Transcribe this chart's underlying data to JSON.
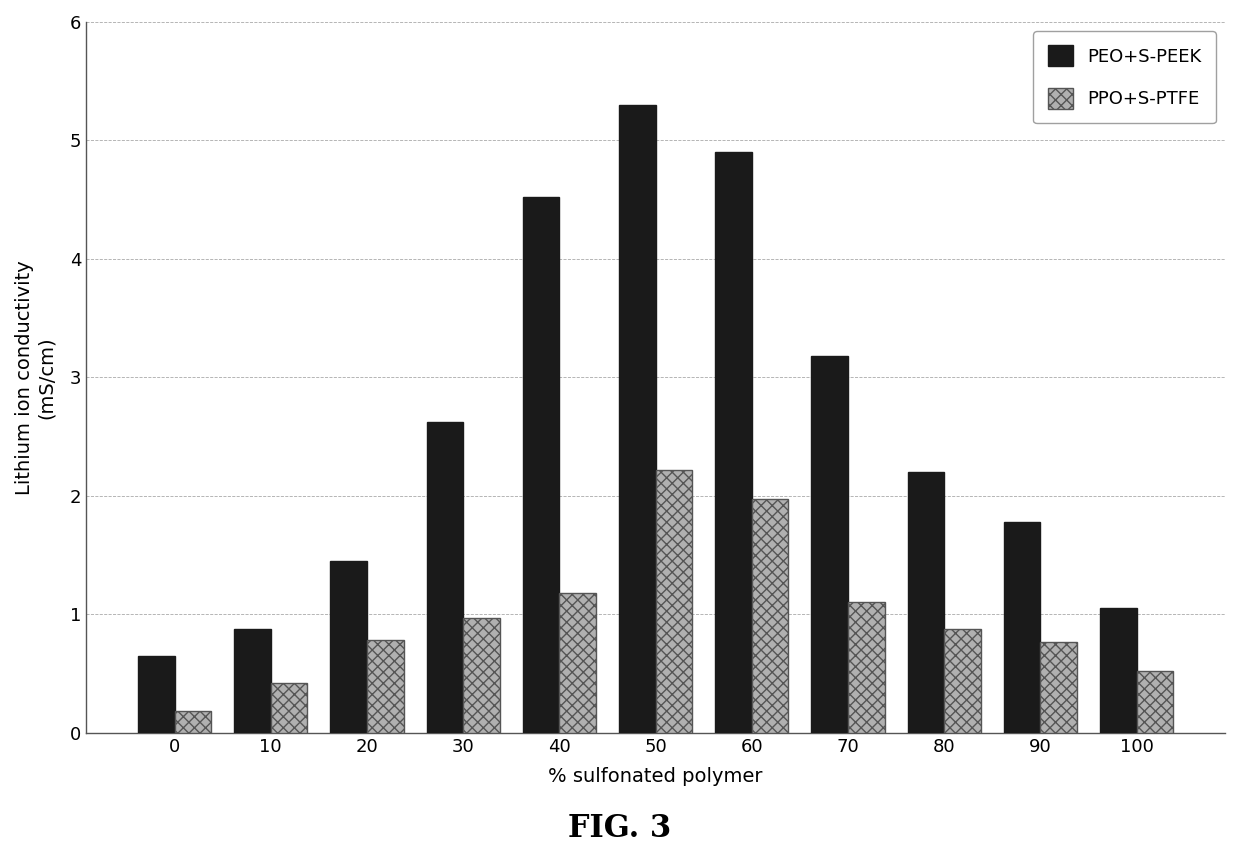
{
  "categories": [
    0,
    10,
    20,
    30,
    40,
    50,
    60,
    70,
    80,
    90,
    100
  ],
  "peo_s_peek": [
    0.65,
    0.88,
    1.45,
    2.62,
    4.52,
    5.3,
    4.9,
    3.18,
    2.2,
    1.78,
    1.05
  ],
  "ppo_s_ptfe": [
    0.18,
    0.42,
    0.78,
    0.97,
    1.18,
    2.22,
    1.97,
    1.1,
    0.88,
    0.77,
    0.52
  ],
  "peo_color": "#1a1a1a",
  "ppo_color": "#b0b0b0",
  "ppo_hatch": "xxx",
  "ppo_edgecolor": "#555555",
  "title": "FIG. 3",
  "xlabel": "% sulfonated polymer",
  "ylabel_line1": "Lithium ion conductivity",
  "ylabel_line2": "(mS/cm)",
  "ylim": [
    0,
    6
  ],
  "yticks": [
    0,
    1,
    2,
    3,
    4,
    5,
    6
  ],
  "legend_peo": "PEO+S-PEEK",
  "legend_ppo": "PPO+S-PTFE",
  "bar_width": 0.38,
  "figure_bg": "#ffffff",
  "axes_bg": "#ffffff",
  "grid_color": "#aaaaaa",
  "grid_linestyle": "--",
  "grid_linewidth": 0.6,
  "tick_fontsize": 13,
  "label_fontsize": 14,
  "legend_fontsize": 13,
  "title_fontsize": 22
}
